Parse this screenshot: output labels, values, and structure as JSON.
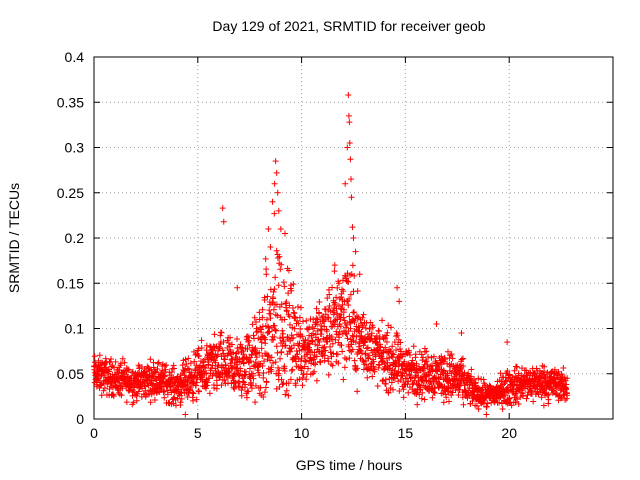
{
  "chart_data": {
    "type": "scatter",
    "title": "Day 129 of 2021, SRMTID for receiver geob",
    "xlabel": "GPS time / hours",
    "ylabel": "SRMTID / TECUs",
    "xlim": [
      0,
      25
    ],
    "ylim": [
      0,
      0.4
    ],
    "xticks": [
      0,
      5,
      10,
      15,
      20
    ],
    "xtick_labels": [
      "0",
      "5",
      "10",
      "15",
      "20"
    ],
    "yticks": [
      0,
      0.05,
      0.1,
      0.15,
      0.2,
      0.25,
      0.3,
      0.35,
      0.4
    ],
    "ytick_labels": [
      "0",
      "0.05",
      "0.1",
      "0.15",
      "0.2",
      "0.25",
      "0.3",
      "0.35",
      "0.4"
    ],
    "grid": true,
    "marker": "plus",
    "series": [
      {
        "name": "SRMTID",
        "color": "#ff0000",
        "envelope_hours": [
          0,
          1,
          2,
          3,
          4,
          5,
          6,
          7,
          7.8,
          8.4,
          8.8,
          9.3,
          10,
          10.8,
          11.5,
          12,
          12.3,
          12.7,
          13.5,
          14.5,
          15.5,
          16.5,
          17.5,
          18.3,
          19,
          20,
          21,
          22,
          22.8
        ],
        "envelope_median": [
          0.05,
          0.045,
          0.04,
          0.045,
          0.035,
          0.05,
          0.06,
          0.055,
          0.065,
          0.09,
          0.11,
          0.095,
          0.08,
          0.085,
          0.1,
          0.12,
          0.11,
          0.09,
          0.075,
          0.06,
          0.05,
          0.05,
          0.045,
          0.03,
          0.025,
          0.035,
          0.04,
          0.04,
          0.035
        ],
        "envelope_spread": [
          0.015,
          0.015,
          0.015,
          0.015,
          0.015,
          0.02,
          0.025,
          0.025,
          0.035,
          0.06,
          0.08,
          0.05,
          0.035,
          0.03,
          0.04,
          0.05,
          0.05,
          0.035,
          0.025,
          0.025,
          0.02,
          0.02,
          0.02,
          0.012,
          0.01,
          0.015,
          0.015,
          0.015,
          0.012
        ],
        "outliers": [
          [
            6.2,
            0.233
          ],
          [
            6.25,
            0.218
          ],
          [
            6.9,
            0.145
          ],
          [
            8.6,
            0.24
          ],
          [
            8.7,
            0.26
          ],
          [
            8.75,
            0.285
          ],
          [
            8.8,
            0.272
          ],
          [
            8.85,
            0.25
          ],
          [
            8.9,
            0.23
          ],
          [
            9.0,
            0.21
          ],
          [
            9.2,
            0.205
          ],
          [
            8.4,
            0.21
          ],
          [
            8.5,
            0.19
          ],
          [
            8.3,
            0.16
          ],
          [
            11.6,
            0.17
          ],
          [
            11.8,
            0.15
          ],
          [
            12.1,
            0.26
          ],
          [
            12.2,
            0.3
          ],
          [
            12.25,
            0.358
          ],
          [
            12.28,
            0.335
          ],
          [
            12.3,
            0.328
          ],
          [
            12.32,
            0.305
          ],
          [
            12.35,
            0.287
          ],
          [
            12.38,
            0.265
          ],
          [
            12.4,
            0.245
          ],
          [
            12.45,
            0.212
          ],
          [
            12.5,
            0.2
          ],
          [
            12.6,
            0.185
          ],
          [
            12.8,
            0.16
          ],
          [
            14.6,
            0.145
          ],
          [
            14.7,
            0.13
          ],
          [
            16.5,
            0.105
          ],
          [
            17.7,
            0.095
          ],
          [
            19.9,
            0.085
          ],
          [
            4.4,
            0.005
          ],
          [
            18.9,
            0.005
          ]
        ]
      }
    ]
  }
}
